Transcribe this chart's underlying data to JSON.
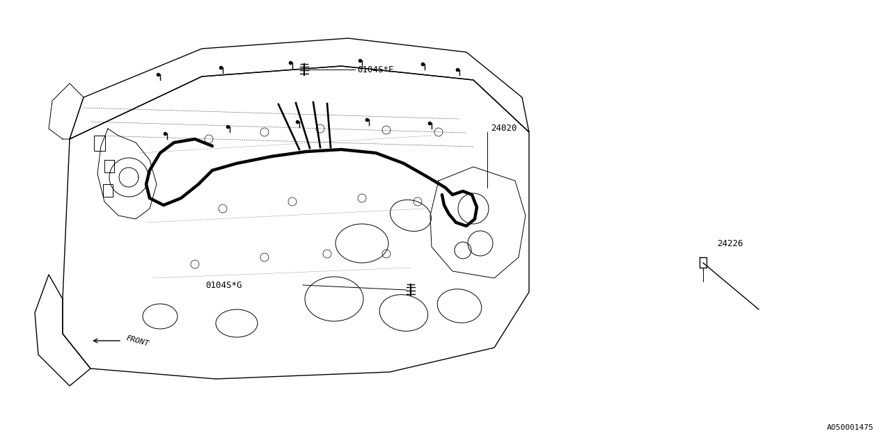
{
  "bg_color": "#ffffff",
  "line_color": "#000000",
  "lw_thin": 0.7,
  "lw_med": 1.0,
  "lw_thick": 3.2,
  "lw_dash": 0.5,
  "labels": {
    "part_0104SF": "0104S*F",
    "part_24020": "24020",
    "part_0104SG": "0104S*G",
    "part_24226": "24226",
    "doc_id": "A050001475",
    "front": "FRONT"
  },
  "font_size": 9,
  "doc_font_size": 8
}
